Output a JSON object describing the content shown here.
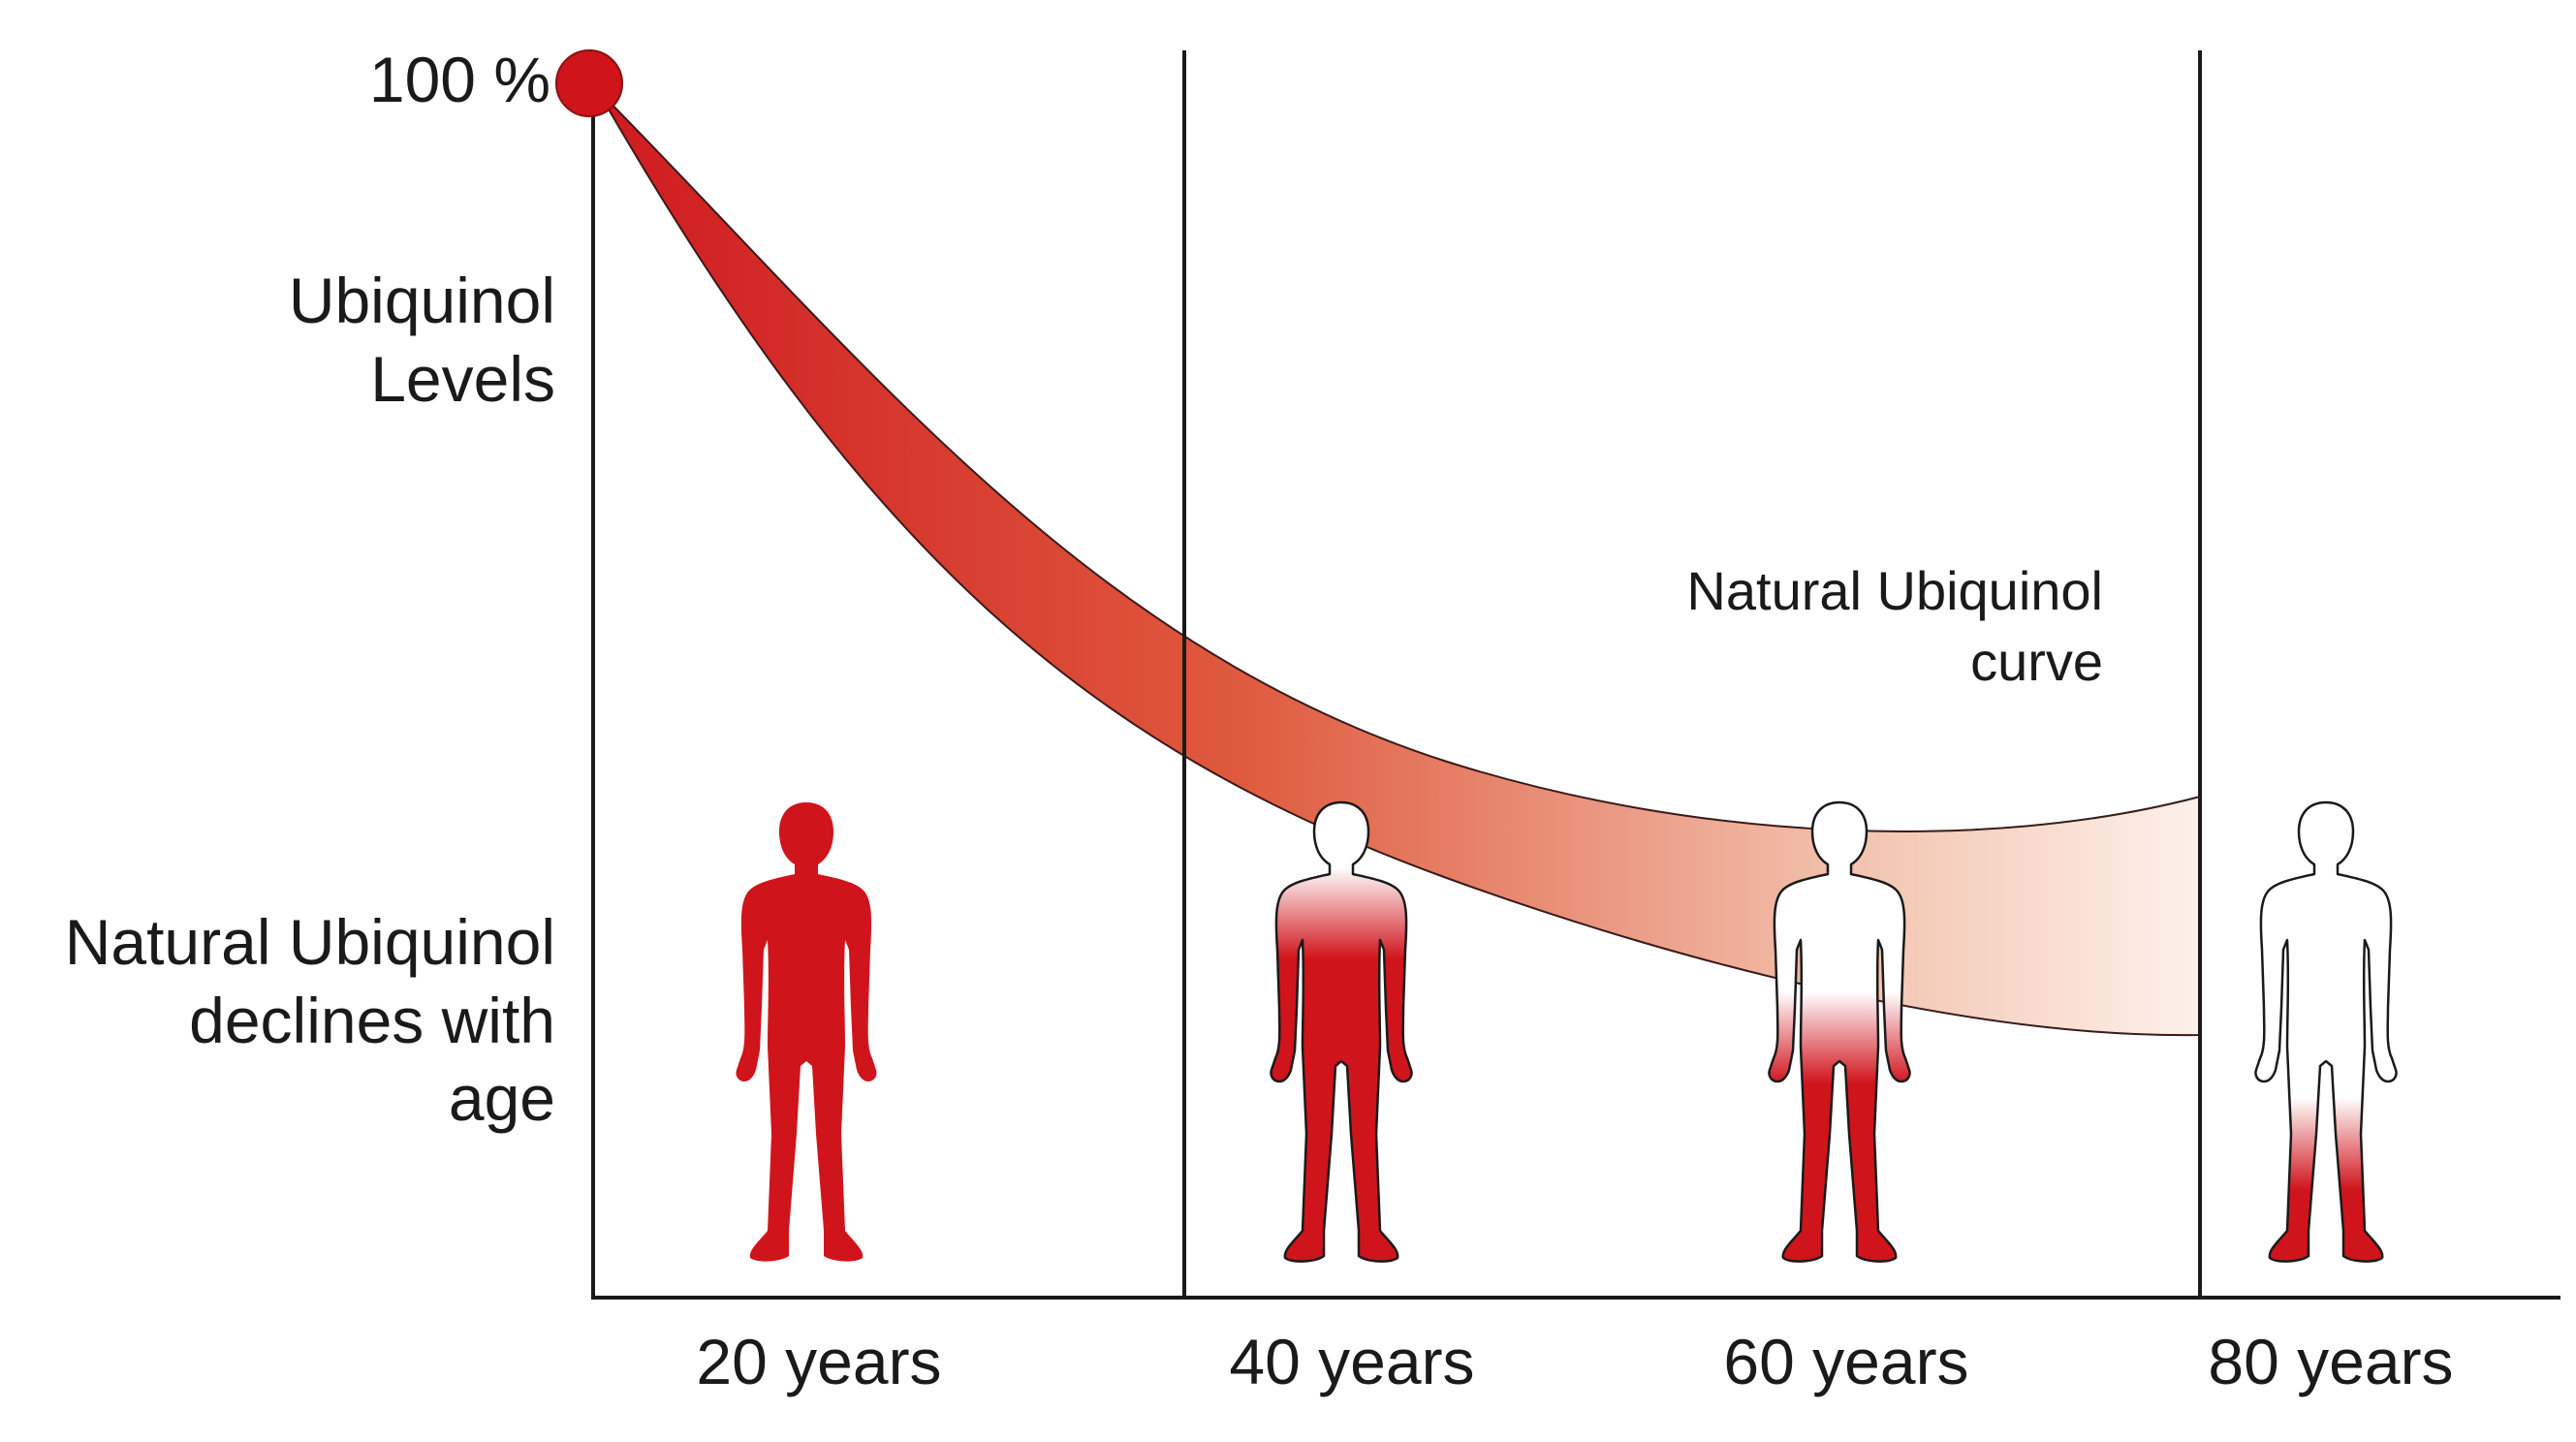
{
  "y_axis": {
    "top_label": "100 %",
    "title_line1": "Ubiquinol",
    "title_line2": "Levels"
  },
  "caption": {
    "line1": "Natural Ubiquinol",
    "line2": "declines with",
    "line3": "age"
  },
  "curve": {
    "label_line1": "Natural Ubiquinol",
    "label_line2": "curve"
  },
  "x_axis": {
    "ticks": [
      "20 years",
      "40 years",
      "60 years",
      "80 years"
    ]
  },
  "figures": [
    {
      "age": "20 years",
      "red_fill_fraction": 1.0
    },
    {
      "age": "40 years",
      "red_fill_fraction": 0.72
    },
    {
      "age": "60 years",
      "red_fill_fraction": 0.45
    },
    {
      "age": "80 years",
      "red_fill_fraction": 0.22
    }
  ],
  "colors": {
    "accent_red": "#d0141c",
    "line": "#1a1a1a"
  }
}
